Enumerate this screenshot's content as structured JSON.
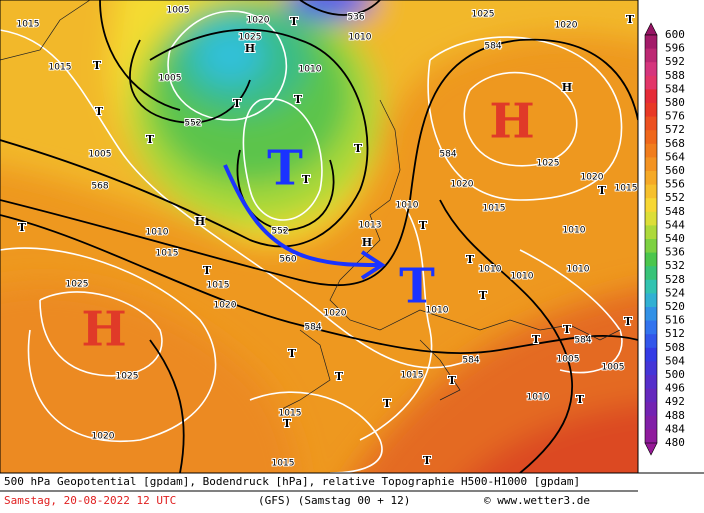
{
  "map": {
    "highs_big": [
      "H",
      "H"
    ],
    "lows_big": [
      "T",
      "T"
    ],
    "highs_small": [
      "H",
      "H",
      "H",
      "H"
    ],
    "lows_small": [
      "T",
      "T",
      "T",
      "T",
      "T",
      "T",
      "T",
      "T",
      "T",
      "T",
      "T",
      "T",
      "T",
      "T",
      "T",
      "T",
      "T",
      "T",
      "T",
      "T",
      "T",
      "T",
      "T",
      "T",
      "T"
    ],
    "contour_labels": [
      1015,
      1015,
      1005,
      1020,
      1025,
      536,
      1010,
      584,
      1025,
      1020,
      552,
      1005,
      1010,
      1005,
      568,
      1010,
      1015,
      552,
      560,
      1015,
      1020,
      1025,
      1025,
      1020,
      1015,
      1015,
      584,
      1020,
      584,
      584,
      1020,
      1015,
      1010,
      1015,
      1010,
      1005,
      584,
      1025,
      1020,
      1015,
      1010,
      1010,
      1010,
      1010,
      1013,
      1010,
      1005
    ]
  },
  "colorbar": {
    "labels": [
      600,
      596,
      592,
      588,
      584,
      580,
      576,
      572,
      568,
      564,
      560,
      556,
      552,
      548,
      544,
      540,
      536,
      532,
      528,
      524,
      520,
      516,
      512,
      508,
      504,
      500,
      496,
      492,
      488,
      484,
      480
    ]
  },
  "footer": {
    "line1": "500 hPa Geopotential [gpdam], Bodendruck [hPa], relative Topographie H500-H1000 [gpdam]",
    "date": "Samstag, 20-08-2022  12 UTC",
    "run": "(GFS)  (Samstag 00 + 12)",
    "credit": "© www.wetter3.de"
  }
}
